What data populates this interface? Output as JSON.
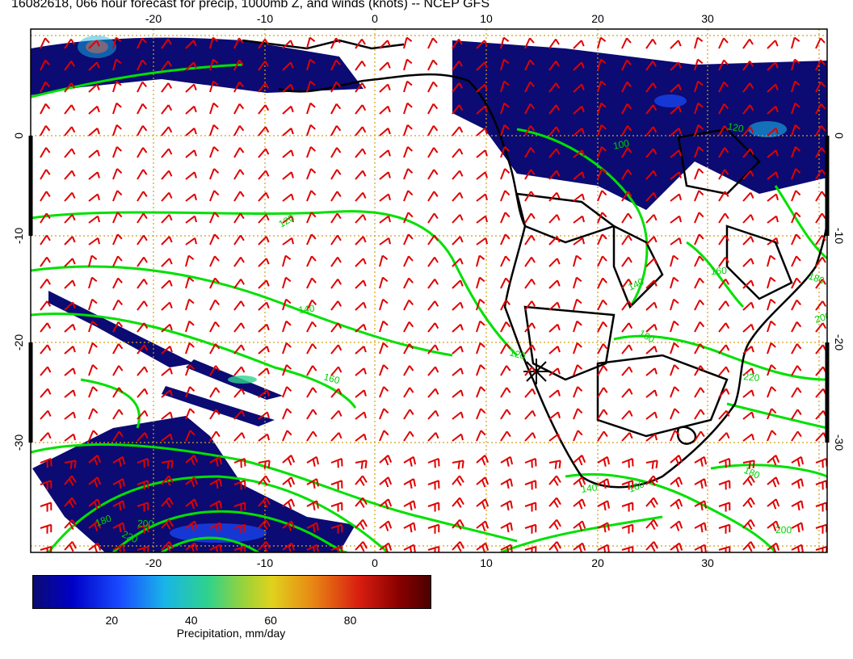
{
  "title": "16082618, 066 hour forecast for precip, 1000mb Z, and winds (knots) -- NCEP GFS",
  "map": {
    "region": "Southern Africa and South Atlantic",
    "lon_range": [
      -30,
      40
    ],
    "lat_range": [
      -40,
      10
    ],
    "lon_ticks": [
      "-20",
      "-10",
      "0",
      "10",
      "20",
      "30"
    ],
    "lat_ticks": [
      "0",
      "-10",
      "-20",
      "-30"
    ],
    "contour_labels": [
      "120",
      "140",
      "160",
      "180",
      "200",
      "220",
      "100",
      "120",
      "140",
      "160",
      "180",
      "200",
      "220",
      "160",
      "140",
      "120",
      "160",
      "200",
      "180"
    ],
    "colors": {
      "precip_low": "#0b0b73",
      "contours": "#00e000",
      "wind_barbs": "#e00000",
      "coastline": "#000000",
      "grid": "#d4a017"
    }
  },
  "colorbar": {
    "ticks": [
      "20",
      "40",
      "60",
      "80"
    ],
    "label": "Precipitation, mm/day",
    "range": [
      0,
      100
    ]
  }
}
